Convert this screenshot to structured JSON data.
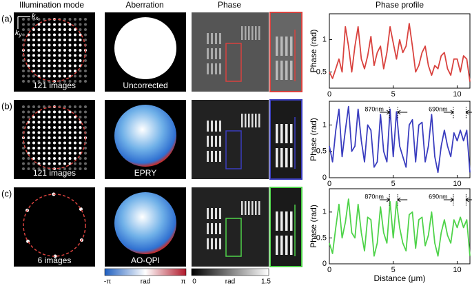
{
  "column_headers": [
    "Illumination mode",
    "Aberration",
    "Phase",
    "Phase profile"
  ],
  "rows": [
    {
      "label": "(a)",
      "illumination": "121 images",
      "aberration": "Uncorrected"
    },
    {
      "label": "(b)",
      "illumination": "121 images",
      "aberration": "EPRY"
    },
    {
      "label": "(c)",
      "illumination": "6 images",
      "aberration": "AO-QPI"
    }
  ],
  "k_axes": {
    "kx": [
      "k",
      "x"
    ],
    "ky": [
      "k",
      "y"
    ]
  },
  "colorbars": [
    {
      "min": "-π",
      "unit": "rad",
      "max": "π"
    },
    {
      "min": "0",
      "unit": "rad",
      "max": "1.5"
    }
  ],
  "chart_data": [
    {
      "type": "line",
      "color": "#d9423e",
      "ylabel": "Phase (rad)",
      "xlim": [
        0,
        11
      ],
      "ylim": [
        0.25,
        1.4
      ],
      "xticks": [
        0,
        5,
        10
      ],
      "yticks": [
        0.5,
        1
      ],
      "x": [
        0,
        0.25,
        0.5,
        0.75,
        1,
        1.25,
        1.5,
        1.75,
        2,
        2.25,
        2.5,
        2.75,
        3,
        3.25,
        3.5,
        3.75,
        4,
        4.25,
        4.5,
        4.75,
        5,
        5.25,
        5.5,
        5.75,
        6,
        6.25,
        6.5,
        6.75,
        7,
        7.25,
        7.5,
        7.75,
        8,
        8.25,
        8.5,
        8.75,
        9,
        9.25,
        9.5,
        9.75,
        10,
        10.25,
        10.5,
        10.75,
        11
      ],
      "values": [
        0.5,
        0.4,
        0.55,
        0.7,
        0.5,
        1.2,
        0.9,
        0.5,
        0.9,
        1.2,
        0.7,
        0.55,
        0.75,
        1.05,
        0.6,
        0.8,
        0.9,
        0.55,
        0.8,
        1.2,
        0.95,
        0.7,
        1.0,
        0.8,
        0.9,
        1.25,
        0.9,
        0.5,
        0.6,
        0.8,
        0.9,
        0.6,
        0.45,
        0.6,
        0.55,
        0.75,
        0.8,
        0.55,
        0.45,
        0.7,
        0.7,
        0.5,
        0.75,
        0.7,
        0.35
      ]
    },
    {
      "type": "line",
      "color": "#3a3dbf",
      "ylabel": "Phase (rad)",
      "xlim": [
        0,
        11
      ],
      "ylim": [
        0,
        1.45
      ],
      "xticks": [
        0,
        5,
        10
      ],
      "yticks": [
        0,
        0.5,
        1
      ],
      "x": [
        0,
        0.25,
        0.5,
        0.75,
        1,
        1.25,
        1.5,
        1.75,
        2,
        2.25,
        2.5,
        2.75,
        3,
        3.25,
        3.5,
        3.75,
        4,
        4.25,
        4.5,
        4.75,
        5,
        5.25,
        5.5,
        5.75,
        6,
        6.25,
        6.5,
        6.75,
        7,
        7.25,
        7.5,
        7.75,
        8,
        8.25,
        8.5,
        8.75,
        9,
        9.25,
        9.5,
        9.75,
        10,
        10.25,
        10.5,
        10.75,
        11
      ],
      "values": [
        0.6,
        0.3,
        0.9,
        1.3,
        0.4,
        0.9,
        1.35,
        0.5,
        0.6,
        1.3,
        0.7,
        0.3,
        1.0,
        0.9,
        0.2,
        0.3,
        1.2,
        0.5,
        0.3,
        1.3,
        0.4,
        1.25,
        0.6,
        0.4,
        0.2,
        1.0,
        1.1,
        0.3,
        1.0,
        1.05,
        0.3,
        0.6,
        1.2,
        0.4,
        0.1,
        0.6,
        0.9,
        0.6,
        0.4,
        0.85,
        0.7,
        0.9,
        0.7,
        0.9,
        0.1
      ],
      "annotations": [
        "870nm",
        "690nm"
      ]
    },
    {
      "type": "line",
      "color": "#4fd34a",
      "ylabel": "Phase (rad)",
      "xlabel": "Distance (μm)",
      "xlim": [
        0,
        11
      ],
      "ylim": [
        0,
        1.45
      ],
      "xticks": [
        0,
        5,
        10
      ],
      "yticks": [
        0,
        0.5,
        1
      ],
      "x": [
        0,
        0.25,
        0.5,
        0.75,
        1,
        1.25,
        1.5,
        1.75,
        2,
        2.25,
        2.5,
        2.75,
        3,
        3.25,
        3.5,
        3.75,
        4,
        4.25,
        4.5,
        4.75,
        5,
        5.25,
        5.5,
        5.75,
        6,
        6.25,
        6.5,
        6.75,
        7,
        7.25,
        7.5,
        7.75,
        8,
        8.25,
        8.5,
        8.75,
        9,
        9.25,
        9.5,
        9.75,
        10,
        10.25,
        10.5,
        10.75,
        11
      ],
      "values": [
        0.4,
        0.2,
        0.7,
        1.15,
        0.5,
        0.8,
        1.25,
        0.6,
        0.5,
        1.15,
        0.6,
        0.25,
        0.9,
        0.85,
        0.15,
        0.4,
        1.1,
        0.6,
        0.4,
        1.2,
        0.5,
        1.2,
        0.7,
        0.4,
        0.25,
        0.95,
        1.0,
        0.3,
        0.85,
        0.9,
        0.35,
        0.55,
        1.0,
        0.4,
        0.15,
        0.6,
        0.85,
        0.55,
        0.4,
        0.85,
        0.7,
        0.9,
        0.7,
        0.85,
        0.15
      ],
      "annotations": [
        "870nm",
        "690nm"
      ]
    }
  ]
}
